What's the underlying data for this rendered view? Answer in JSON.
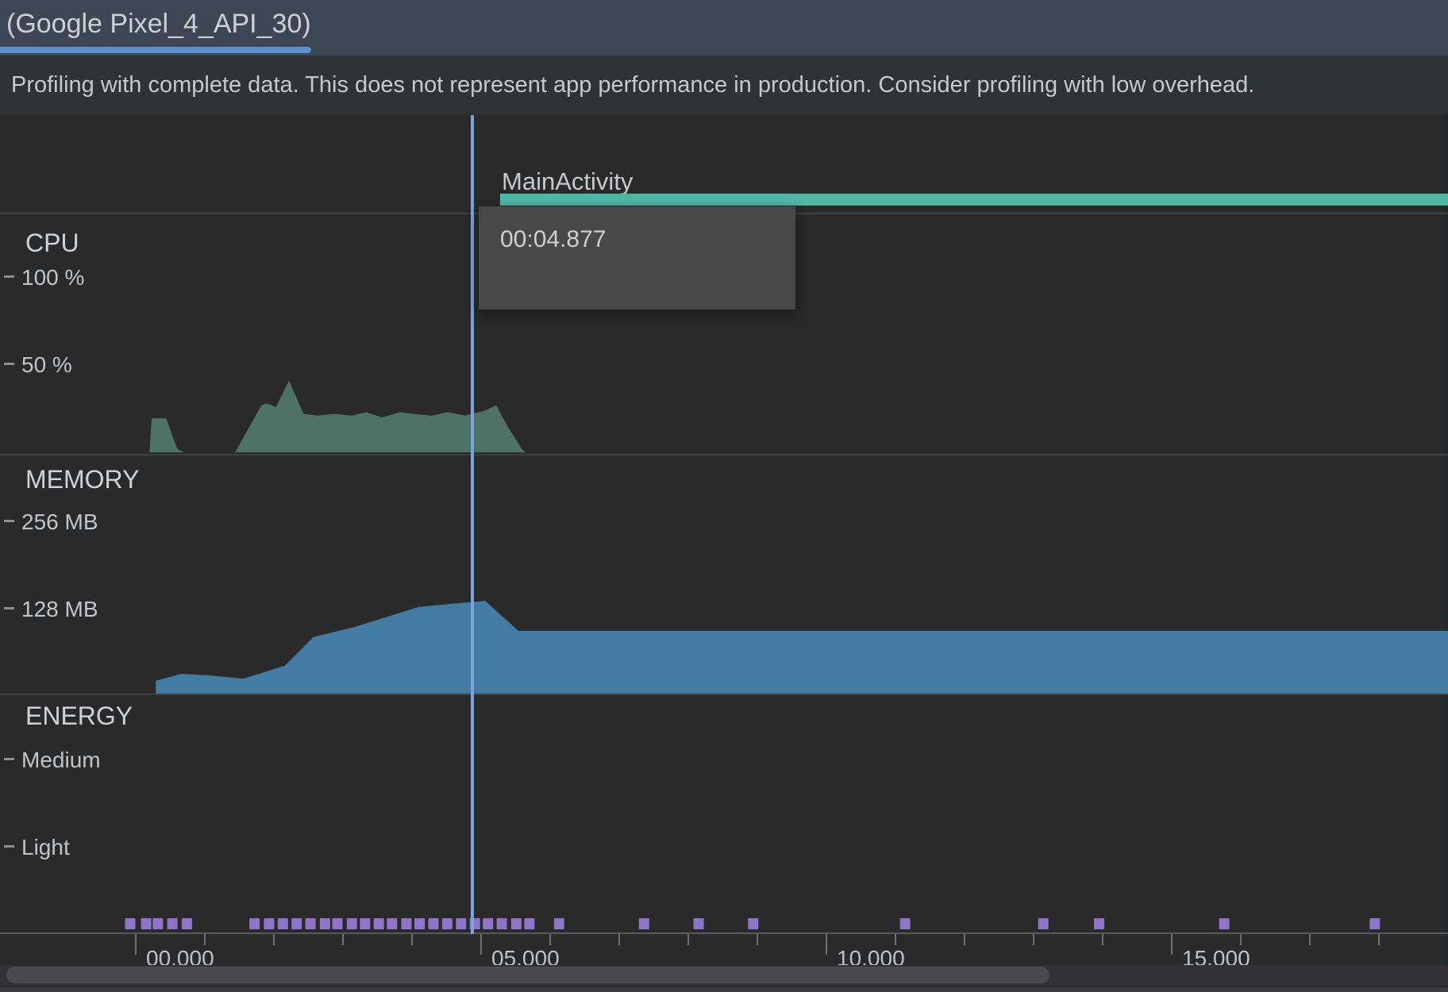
{
  "window": {
    "tab_label": "(Google Pixel_4_API_30)"
  },
  "banner": {
    "text": "Profiling with complete data. This does not represent app performance in production. Consider profiling with low overhead."
  },
  "timeline": {
    "activity_label": "MainActivity",
    "tooltip_time": "00:04.877",
    "playhead_time_s": 4.877
  },
  "sections": {
    "cpu": {
      "title": "CPU",
      "tick_top": "100 %",
      "tick_bottom": "50 %"
    },
    "memory": {
      "title": "MEMORY",
      "tick_top": "256 MB",
      "tick_bottom": "128 MB"
    },
    "energy": {
      "title": "ENERGY",
      "tick_top": "Medium",
      "tick_bottom": "Light"
    }
  },
  "time_axis": {
    "major_labels": [
      "00.000",
      "05.000",
      "10.000",
      "15.000"
    ],
    "major_every_s": 5,
    "minor_every_s": 1,
    "start_s": 0,
    "end_s": 19
  },
  "chart_data": [
    {
      "type": "area",
      "name": "cpu_usage",
      "title": "CPU",
      "ylabel": "%",
      "ylim": [
        0,
        100
      ],
      "x_unit": "seconds",
      "grid": false,
      "points": [
        [
          0.2,
          0
        ],
        [
          0.23,
          19.5
        ],
        [
          0.44,
          19.5
        ],
        [
          0.6,
          2
        ],
        [
          0.7,
          0
        ],
        [
          1.44,
          0
        ],
        [
          1.82,
          27
        ],
        [
          1.9,
          28
        ],
        [
          2.03,
          26
        ],
        [
          2.22,
          41
        ],
        [
          2.43,
          22
        ],
        [
          2.63,
          21
        ],
        [
          2.87,
          22
        ],
        [
          3.13,
          21
        ],
        [
          3.33,
          23
        ],
        [
          3.57,
          20
        ],
        [
          3.83,
          23
        ],
        [
          4.02,
          22
        ],
        [
          4.28,
          21
        ],
        [
          4.52,
          23
        ],
        [
          4.77,
          21
        ],
        [
          5.06,
          24
        ],
        [
          5.22,
          27
        ],
        [
          5.38,
          15
        ],
        [
          5.59,
          2
        ],
        [
          5.64,
          0
        ]
      ]
    },
    {
      "type": "area",
      "name": "memory_usage",
      "title": "MEMORY",
      "ylabel": "MB",
      "ylim": [
        0,
        256
      ],
      "x_unit": "seconds",
      "grid": false,
      "points": [
        [
          0.29,
          0
        ],
        [
          0.29,
          19
        ],
        [
          0.66,
          29
        ],
        [
          1.03,
          27
        ],
        [
          1.56,
          22
        ],
        [
          2.16,
          41
        ],
        [
          2.57,
          83
        ],
        [
          3.18,
          98
        ],
        [
          4.09,
          127
        ],
        [
          4.6,
          132
        ],
        [
          5.06,
          136
        ],
        [
          5.54,
          92
        ],
        [
          19.0,
          92
        ]
      ]
    },
    {
      "type": "area",
      "name": "energy_usage",
      "title": "ENERGY",
      "ylabel": "level",
      "ylim_labels": [
        "Light",
        "Medium"
      ],
      "x_unit": "seconds",
      "grid": false,
      "points": []
    },
    {
      "type": "scatter",
      "name": "user_events",
      "marker": "square",
      "x_unit": "seconds",
      "times": [
        -0.08,
        0.15,
        0.32,
        0.53,
        0.74,
        1.72,
        1.93,
        2.13,
        2.33,
        2.53,
        2.74,
        2.92,
        3.13,
        3.32,
        3.52,
        3.71,
        3.92,
        4.11,
        4.31,
        4.51,
        4.71,
        4.91,
        5.1,
        5.3,
        5.51,
        5.7,
        6.13,
        7.36,
        8.15,
        8.94,
        11.14,
        13.14,
        13.95,
        15.76,
        17.94
      ]
    }
  ],
  "colors": {
    "tabbar_bg": "#3d4754",
    "tab_underline": "#5d8ed4",
    "banner_bg": "#2e3335",
    "stage_bg": "#2a2a2b",
    "cpu_area": "#4e7366",
    "memory_area": "#437ca3",
    "thread_bar": "#4fb6a4",
    "event_marker": "#8d75c9",
    "playhead": "#79a4e0",
    "tick": "#6f7173",
    "axis_line": "#59595b"
  }
}
